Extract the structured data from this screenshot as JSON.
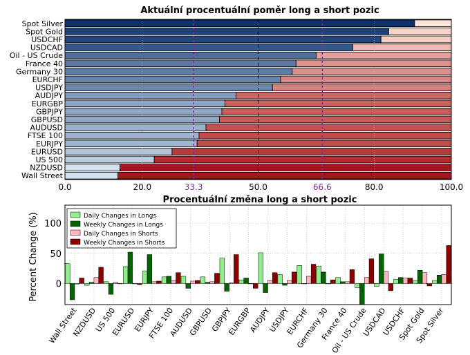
{
  "chart_data": [
    {
      "type": "bar",
      "orientation": "horizontal",
      "title": "Aktuální procentuální poměr long a short pozic",
      "categories": [
        "Spot Silver",
        "Spot Gold",
        "USDCHF",
        "USDCAD",
        "Oil - US Crude",
        "France 40",
        "Germany 30",
        "EURCHF",
        "USDJPY",
        "AUDJPY",
        "EURGBP",
        "GBPJPY",
        "GBPUSD",
        "AUDUSD",
        "FTSE 100",
        "EURJPY",
        "EURUSD",
        "US 500",
        "NZDUSD",
        "Wall Street"
      ],
      "long_pct": [
        90.5,
        83.8,
        81.8,
        74.5,
        65.0,
        59.8,
        58.8,
        55.8,
        53.7,
        44.3,
        41.4,
        40.6,
        40.0,
        36.5,
        34.7,
        34.2,
        27.7,
        23.1,
        14.2,
        13.7
      ],
      "xlim": [
        0,
        100
      ],
      "xticks": [
        "0.0",
        "20.0",
        "33.3",
        "50.0",
        "66.6",
        "80.0",
        "100.0"
      ],
      "reference_lines": [
        33.3,
        50.0,
        66.6
      ],
      "colors": {
        "long_dark": "#08306b",
        "long_light": "#deebf7",
        "short_light": "#fee5d9",
        "short_dark": "#a50f15",
        "ref_dashed": "#000000",
        "ref_purple": "#7b2d9b",
        "grid": "#b0b0b0"
      }
    },
    {
      "type": "bar",
      "title": "Procentuální změna long a short pozic",
      "ylabel": "Percent Change (%)",
      "ylim": [
        -35,
        130
      ],
      "yticks": [
        "0",
        "50",
        "100"
      ],
      "legend_position": "top-left",
      "categories": [
        "Wall Street",
        "NZDUSD",
        "US 500",
        "EURUSD",
        "EURJPY",
        "FTSE 100",
        "AUDUSD",
        "GBPUSD",
        "GBPJPY",
        "EURGBP",
        "AUDJPY",
        "USDJPY",
        "EURCHF",
        "Germany 30",
        "France 40",
        "Oil - US Crude",
        "USDCAD",
        "USDCHF",
        "Spot Gold",
        "Spot Silver"
      ],
      "series": [
        {
          "name": "Daily Changes in Longs",
          "color": "#90ee90",
          "values": [
            33,
            -3,
            3,
            28,
            21,
            11,
            12,
            11,
            42,
            6,
            51,
            15,
            30,
            29,
            10,
            -7,
            -5,
            7,
            5,
            5
          ]
        },
        {
          "name": "Weekly Changes in Longs",
          "color": "#006400",
          "values": [
            -27,
            2,
            -18,
            52,
            48,
            12,
            -8,
            2,
            -13,
            9,
            -15,
            -3,
            0,
            19,
            3,
            -35,
            49,
            10,
            22,
            14
          ]
        },
        {
          "name": "Daily Changes in Shorts",
          "color": "#ffb6c1",
          "values": [
            -1,
            10,
            2,
            0,
            3,
            5,
            4,
            3,
            1,
            0,
            5,
            5,
            12,
            0,
            3,
            10,
            20,
            9,
            18,
            15
          ]
        },
        {
          "name": "Weekly Changes in Shorts",
          "color": "#8b0000",
          "values": [
            9,
            27,
            0,
            -2,
            4,
            18,
            5,
            17,
            48,
            -8,
            18,
            19,
            32,
            6,
            23,
            41,
            -12,
            9,
            -4,
            63
          ]
        }
      ]
    }
  ]
}
